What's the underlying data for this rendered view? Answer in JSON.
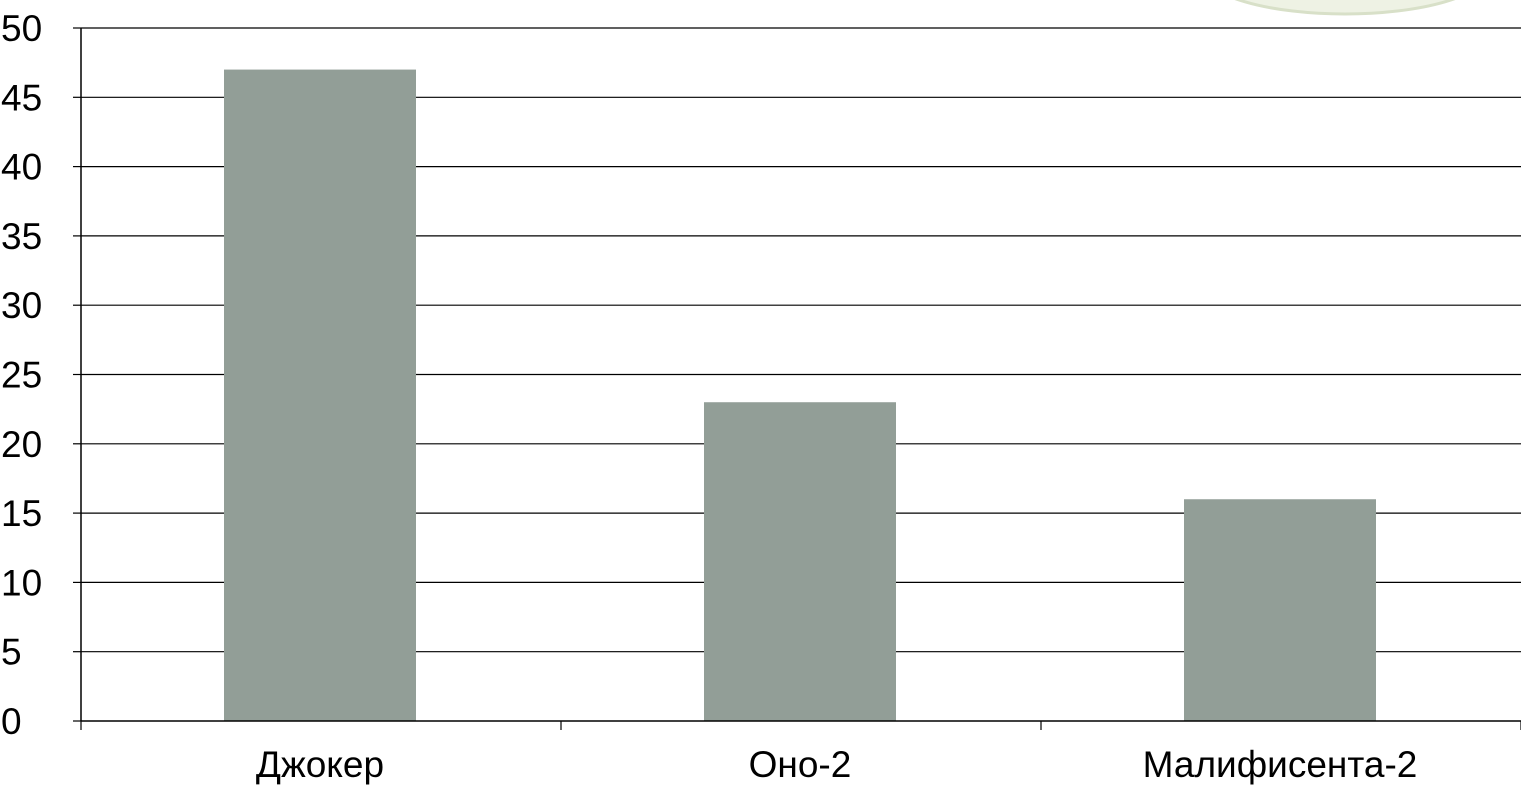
{
  "chart_data": {
    "type": "bar",
    "title": "",
    "xlabel": "",
    "ylabel": "",
    "categories": [
      "Джокер",
      "Оно-2",
      "Малифисента-2"
    ],
    "values": [
      47,
      23,
      16
    ],
    "ylim": [
      0,
      50
    ],
    "yticks": [
      "0",
      "5",
      "10",
      "15",
      "20",
      "25",
      "30",
      "35",
      "40",
      "45",
      "50"
    ],
    "grid": true,
    "legend": "none"
  },
  "colors": {
    "bar": "#929e97",
    "grid": "#000000",
    "background": "#ffffff",
    "decoration_fill": "#eef2e4",
    "decoration_stroke": "#d8e0c8"
  }
}
